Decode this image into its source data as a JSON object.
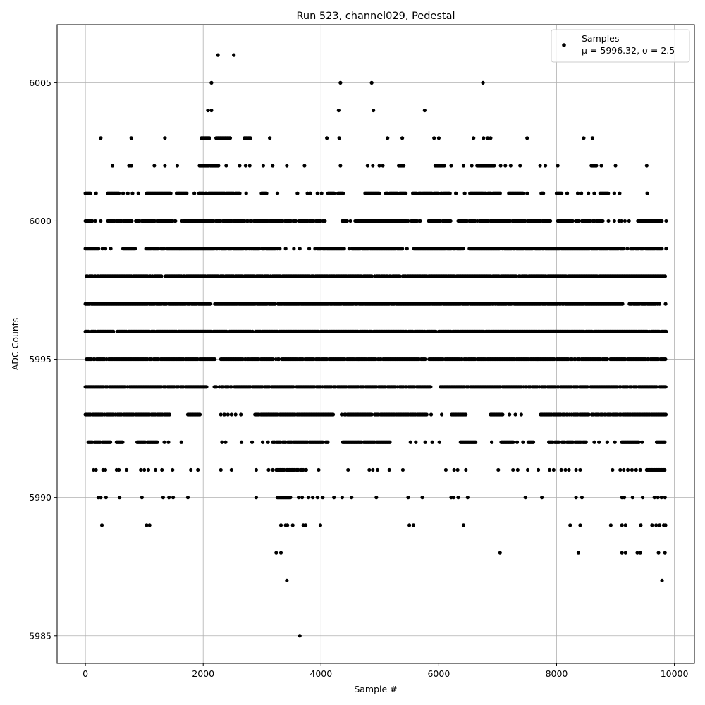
{
  "chart_data": {
    "type": "scatter",
    "title": "Run 523, channel029, Pedestal",
    "xlabel": "Sample #",
    "ylabel": "ADC Counts",
    "xlim": [
      -480,
      10340
    ],
    "ylim": [
      5984.0,
      6007.1
    ],
    "xticks": [
      0,
      2000,
      4000,
      6000,
      8000,
      10000
    ],
    "xtick_labels": [
      "0",
      "2000",
      "4000",
      "6000",
      "8000",
      "10000"
    ],
    "yticks": [
      5985,
      5990,
      5995,
      6000,
      6005
    ],
    "ytick_labels": [
      "5985",
      "5990",
      "5995",
      "6000",
      "6005"
    ],
    "grid": true,
    "legend": {
      "placement": "top-right",
      "label": "Samples",
      "stats_label": "μ = 5996.32, σ = 2.5"
    },
    "series": [
      {
        "name": "Samples",
        "color": "#000000",
        "marker": "dot",
        "level_coverage": [
          {
            "y": 6006,
            "segments": [],
            "points": [
              2250,
              2520
            ]
          },
          {
            "y": 6005,
            "segments": [],
            "points": [
              2140,
              4330,
              4860,
              6750
            ]
          },
          {
            "y": 6004,
            "segments": [],
            "points": [
              2080,
              2140,
              4300,
              4890,
              5760
            ]
          },
          {
            "y": 6003,
            "segments": [
              [
                1970,
                2110
              ],
              [
                2220,
                2470
              ],
              [
                2700,
                2810
              ]
            ],
            "points": [
              260,
              780,
              1350,
              3130,
              4100,
              4310,
              5130,
              5380,
              5920,
              6000,
              6590,
              6760,
              6830,
              6880,
              7500,
              8460,
              8610
            ]
          },
          {
            "y": 6002,
            "segments": [
              [
                1920,
                2310
              ],
              [
                5320,
                5420
              ],
              [
                5940,
                6100
              ],
              [
                6650,
                6940
              ],
              [
                8590,
                8680
              ]
            ],
            "points": [
              460,
              740,
              780,
              1170,
              1350,
              1560,
              2390,
              2620,
              2720,
              2790,
              3020,
              3180,
              3420,
              3720,
              4330,
              4790,
              4880,
              4990,
              5050,
              6210,
              6420,
              6560,
              7050,
              7130,
              7220,
              7380,
              7720,
              7810,
              8020,
              8760,
              9000,
              9530
            ]
          },
          {
            "y": 6001,
            "segments": [
              [
                0,
                90
              ],
              [
                380,
                580
              ],
              [
                1040,
                1460
              ],
              [
                1550,
                1720
              ],
              [
                1940,
                2620
              ],
              [
                2990,
                3090
              ],
              [
                4120,
                4230
              ],
              [
                4290,
                4380
              ],
              [
                4750,
                5000
              ],
              [
                5100,
                5440
              ],
              [
                5560,
                6200
              ],
              [
                6530,
                7040
              ],
              [
                7190,
                7440
              ],
              [
                7740,
                7790
              ],
              [
                8000,
                8090
              ],
              [
                8740,
                8890
              ]
            ],
            "points": [
              180,
              640,
              720,
              800,
              900,
              1850,
              1930,
              2730,
              3260,
              3600,
              3770,
              3820,
              3940,
              4010,
              6290,
              6440,
              7500,
              8180,
              8360,
              8420,
              8540,
              8640,
              8980,
              9070,
              9540
            ]
          },
          {
            "y": 6000,
            "segments": [
              [
                0,
                130
              ],
              [
                380,
                1530
              ],
              [
                1620,
                4080
              ],
              [
                4360,
                4460
              ],
              [
                4580,
                5700
              ],
              [
                5810,
                6210
              ],
              [
                6330,
                7900
              ],
              [
                8020,
                8800
              ],
              [
                9380,
                9800
              ]
            ],
            "points": [
              170,
              260,
              1530,
              4500,
              8880,
              8980,
              9060,
              9100,
              9160,
              9230,
              9860
            ]
          },
          {
            "y": 5999,
            "segments": [
              [
                0,
                230
              ],
              [
                640,
                860
              ],
              [
                1030,
                3230
              ],
              [
                3900,
                4400
              ],
              [
                4530,
                5410
              ],
              [
                5580,
                6420
              ],
              [
                6520,
                7600
              ],
              [
                7640,
                9150
              ],
              [
                9260,
                9800
              ]
            ],
            "points": [
              290,
              340,
              430,
              3260,
              3300,
              3400,
              3540,
              3640,
              3800,
              4480,
              5460,
              9200,
              9860
            ]
          },
          {
            "y": 5998,
            "segments": [
              [
                0,
                9850
              ]
            ],
            "points": []
          },
          {
            "y": 5997,
            "segments": [
              [
                0,
                2140
              ],
              [
                2200,
                9120
              ],
              [
                9220,
                9750
              ]
            ],
            "points": [
              9850
            ]
          },
          {
            "y": 5996,
            "segments": [
              [
                0,
                9860
              ]
            ],
            "points": []
          },
          {
            "y": 5995,
            "segments": [
              [
                20,
                2200
              ],
              [
                2300,
                9850
              ]
            ],
            "points": []
          },
          {
            "y": 5994,
            "segments": [
              [
                0,
                2070
              ],
              [
                2190,
                5870
              ],
              [
                6010,
                9860
              ]
            ],
            "points": []
          },
          {
            "y": 5993,
            "segments": [
              [
                0,
                1440
              ],
              [
                1740,
                1960
              ],
              [
                2880,
                4210
              ],
              [
                4350,
                5810
              ],
              [
                6220,
                6470
              ],
              [
                6880,
                7100
              ],
              [
                7730,
                9860
              ]
            ],
            "points": [
              2300,
              2360,
              2420,
              2480,
              2550,
              2640,
              5870,
              6050,
              7200,
              7300,
              7400
            ]
          },
          {
            "y": 5992,
            "segments": [
              [
                50,
                430
              ],
              [
                530,
                640
              ],
              [
                880,
                1230
              ],
              [
                3180,
                4120
              ],
              [
                4370,
                5170
              ],
              [
                6370,
                6640
              ],
              [
                7060,
                7270
              ],
              [
                7520,
                7620
              ],
              [
                7870,
                8510
              ],
              [
                9090,
                9400
              ],
              [
                9700,
                9850
              ]
            ],
            "points": [
              1340,
              1410,
              1630,
              2320,
              2380,
              2650,
              2830,
              3010,
              3100,
              5520,
              5610,
              5770,
              5890,
              6010,
              6900,
              7330,
              7430,
              8640,
              8720,
              8860,
              8990,
              9450
            ]
          },
          {
            "y": 5991,
            "segments": [
              [
                3240,
                3760
              ],
              [
                9530,
                9850
              ]
            ],
            "points": [
              140,
              180,
              300,
              340,
              530,
              570,
              700,
              940,
              1000,
              1070,
              1190,
              1300,
              1480,
              1790,
              1910,
              2300,
              2480,
              2900,
              3110,
              3180,
              3960,
              4460,
              4820,
              4880,
              4960,
              5160,
              5390,
              6120,
              6260,
              6320,
              6460,
              7010,
              7260,
              7340,
              7510,
              7690,
              7880,
              7950,
              8080,
              8150,
              8210,
              8330,
              8400,
              8950,
              9080,
              9140,
              9210,
              9280,
              9350,
              9420
            ]
          },
          {
            "y": 5990,
            "segments": [
              [
                3260,
                3490
              ]
            ],
            "points": [
              220,
              260,
              350,
              580,
              960,
              1320,
              1420,
              1490,
              1740,
              2900,
              3620,
              3680,
              3790,
              3860,
              3940,
              4030,
              4220,
              4360,
              4520,
              4940,
              5480,
              5720,
              6210,
              6250,
              6330,
              6490,
              7470,
              7750,
              8330,
              8430,
              9110,
              9150,
              9290,
              9460,
              9660,
              9720,
              9780,
              9840
            ]
          },
          {
            "y": 5989,
            "segments": [],
            "points": [
              280,
              1040,
              1090,
              3320,
              3400,
              3430,
              3520,
              3700,
              3740,
              3990,
              5500,
              5570,
              6420,
              8230,
              8400,
              8920,
              9110,
              9170,
              9430,
              9620,
              9690,
              9750,
              9820,
              9850
            ]
          },
          {
            "y": 5988,
            "segments": [],
            "points": [
              3240,
              3320,
              7040,
              8370,
              9110,
              9170,
              9370,
              9420,
              9730,
              9840
            ]
          },
          {
            "y": 5987,
            "segments": [],
            "points": [
              3420,
              9790
            ]
          },
          {
            "y": 5985,
            "segments": [],
            "points": [
              3640
            ]
          }
        ]
      }
    ]
  }
}
